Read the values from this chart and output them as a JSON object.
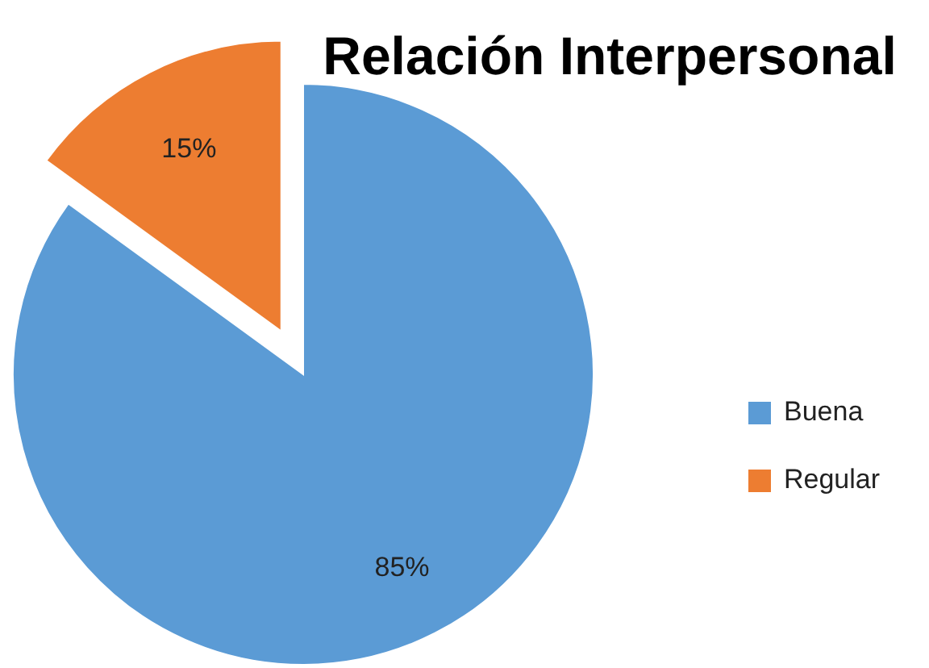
{
  "chart_data": {
    "type": "pie",
    "title": "Relación Interpersonal",
    "categories": [
      "Buena",
      "Regular"
    ],
    "values": [
      85,
      15
    ],
    "colors": [
      "#5b9bd5",
      "#ed7d31"
    ],
    "value_labels": [
      "85%",
      "15%"
    ],
    "legend": "right"
  }
}
